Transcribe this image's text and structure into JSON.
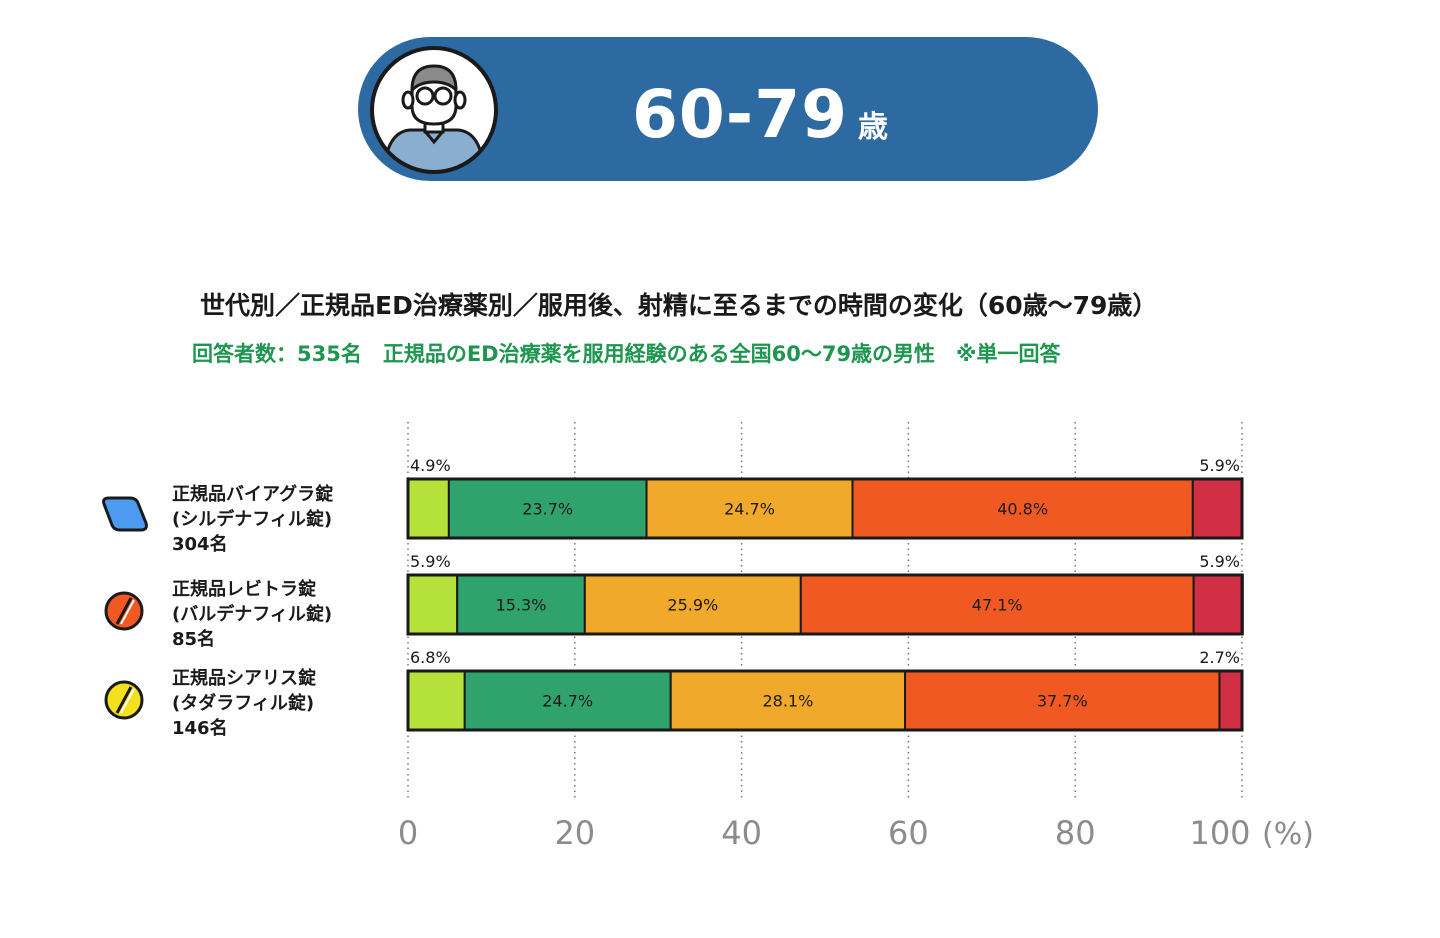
{
  "header": {
    "age_value": "60-79",
    "age_unit": "歳"
  },
  "title": "世代別／正規品ED治療薬別／服用後、射精に至るまでの時間の変化（60歳〜79歳）",
  "subtitle": "回答者数：535名　正規品のED治療薬を服用経験のある全国60〜79歳の男性　※単一回答",
  "legend": [
    {
      "line1": "正規品バイアグラ錠",
      "line2": "(シルデナフィル錠)",
      "line3": "304名",
      "icon": "blue-diamond-pill-icon",
      "color": "#4d9bf0"
    },
    {
      "line1": "正規品レビトラ錠",
      "line2": "(バルデナフィル錠)",
      "line3": "85名",
      "icon": "orange-round-pill-icon",
      "color": "#f05a22"
    },
    {
      "line1": "正規品シアリス錠",
      "line2": "(タダラフィル錠)",
      "line3": "146名",
      "icon": "yellow-round-pill-icon",
      "color": "#f5e020"
    }
  ],
  "chart_data": {
    "type": "bar",
    "orientation": "horizontal",
    "stacked": true,
    "categories": [
      "正規品バイアグラ錠",
      "正規品レビトラ錠",
      "正規品シアリス錠"
    ],
    "series": [
      {
        "values": [
          4.9,
          5.9,
          6.8
        ],
        "color": "#b5e23a"
      },
      {
        "values": [
          23.7,
          15.3,
          24.7
        ],
        "color": "#2fa36b"
      },
      {
        "values": [
          24.7,
          25.9,
          28.1
        ],
        "color": "#f0a92a"
      },
      {
        "values": [
          40.8,
          47.1,
          37.7
        ],
        "color": "#f05a22"
      },
      {
        "values": [
          5.9,
          5.9,
          2.7
        ],
        "color": "#d02f44"
      }
    ],
    "labels": [
      [
        "4.9%",
        "23.7%",
        "24.7%",
        "40.8%",
        "5.9%"
      ],
      [
        "5.9%",
        "15.3%",
        "25.9%",
        "47.1%",
        "5.9%"
      ],
      [
        "6.8%",
        "24.7%",
        "28.1%",
        "37.7%",
        "2.7%"
      ]
    ],
    "xlim": [
      0,
      100
    ],
    "xticks": [
      "0",
      "20",
      "40",
      "60",
      "80",
      "100"
    ],
    "xunit": "(%)",
    "grid": true
  }
}
